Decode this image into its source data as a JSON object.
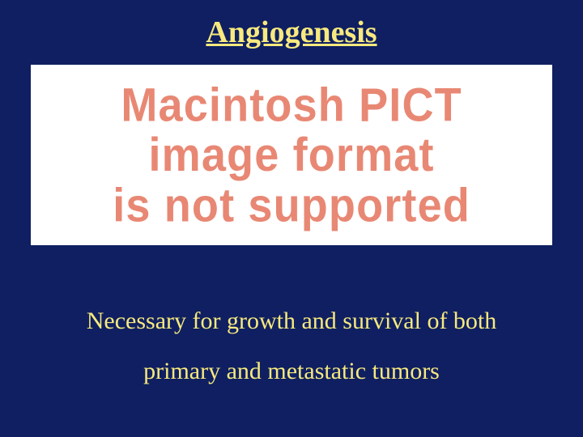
{
  "slide": {
    "background_color": "#0f1f61",
    "text_color": "#f7e97e",
    "title": "Angiogenesis",
    "title_fontsize": 38,
    "placeholder": {
      "background_color": "#ffffff",
      "text_color": "#e88874",
      "line1": "Macintosh PICT",
      "line2": "image format",
      "line3": "is not supported",
      "fontsize": 47
    },
    "body_line1": "Necessary for growth and survival of  both",
    "body_line2": "primary and metastatic tumors",
    "body_fontsize": 30
  }
}
